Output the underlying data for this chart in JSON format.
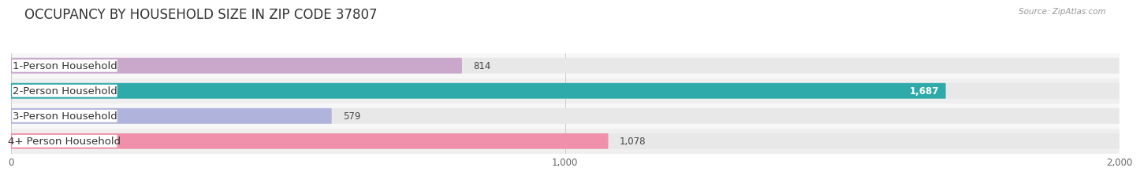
{
  "title": "OCCUPANCY BY HOUSEHOLD SIZE IN ZIP CODE 37807",
  "source": "Source: ZipAtlas.com",
  "categories": [
    "1-Person Household",
    "2-Person Household",
    "3-Person Household",
    "4+ Person Household"
  ],
  "values": [
    814,
    1687,
    579,
    1078
  ],
  "bar_colors": [
    "#c9a8cc",
    "#2eaaaa",
    "#b0b4dc",
    "#f090aa"
  ],
  "label_colors": [
    "#333333",
    "#ffffff",
    "#333333",
    "#333333"
  ],
  "background_color": "#ffffff",
  "bar_bg_color": "#e8e8e8",
  "row_bg_color": "#f5f5f5",
  "xlim": [
    0,
    2000
  ],
  "xticks": [
    0,
    1000,
    2000
  ],
  "xtick_labels": [
    "0",
    "1,000",
    "2,000"
  ],
  "bar_height": 0.62,
  "title_fontsize": 12,
  "label_fontsize": 9.5,
  "value_fontsize": 8.5,
  "axis_fontsize": 8.5
}
